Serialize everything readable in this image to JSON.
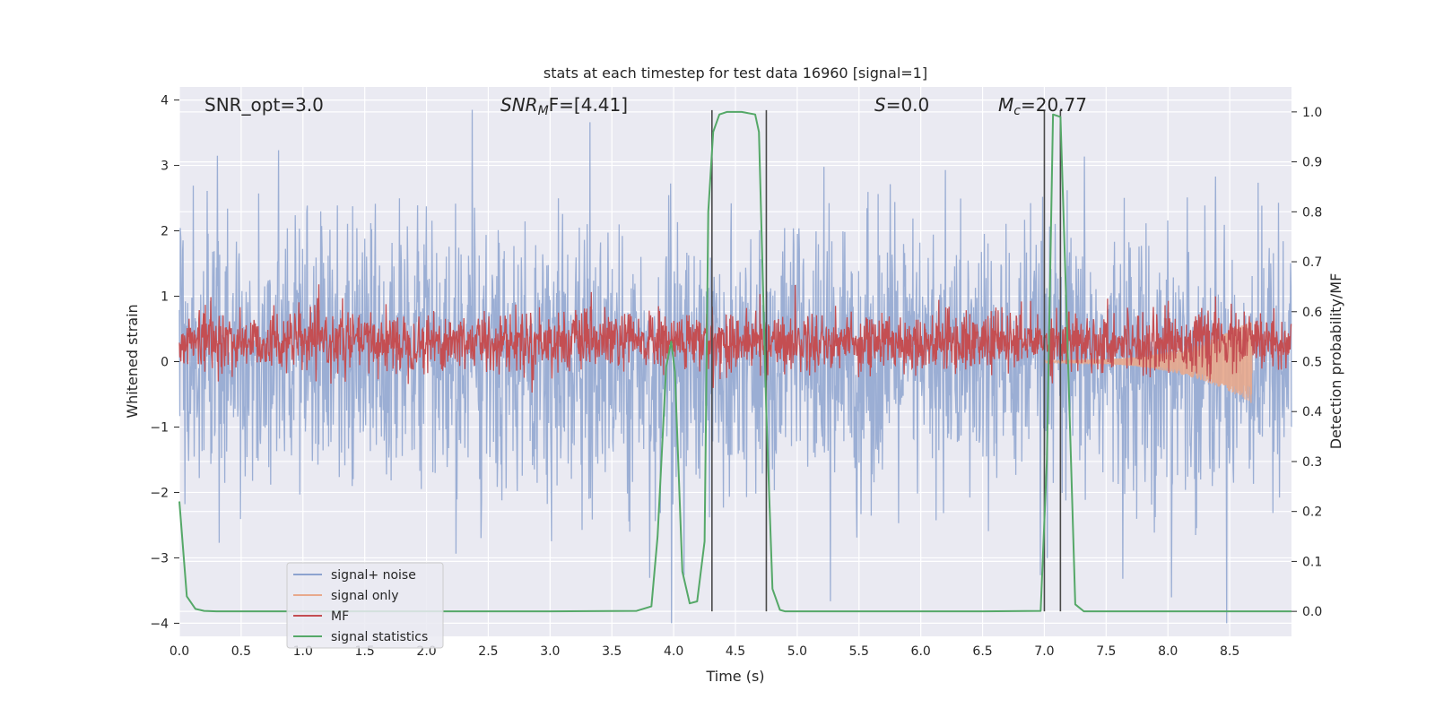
{
  "chart_data": {
    "type": "line",
    "title": "stats at each timestep for test data 16960 [signal=1]",
    "xlabel": "Time (s)",
    "ylabel": "Whitened strain",
    "y2label": "Detection probability/MF",
    "xlim": [
      0.0,
      9.0
    ],
    "ylim": [
      -4.2,
      4.2
    ],
    "y2lim": [
      -0.05,
      1.05
    ],
    "xticks": [
      "0.0",
      "0.5",
      "1.0",
      "1.5",
      "2.0",
      "2.5",
      "3.0",
      "3.5",
      "4.0",
      "4.5",
      "5.0",
      "5.5",
      "6.0",
      "6.5",
      "7.0",
      "7.5",
      "8.0",
      "8.5"
    ],
    "xtick_values": [
      0.0,
      0.5,
      1.0,
      1.5,
      2.0,
      2.5,
      3.0,
      3.5,
      4.0,
      4.5,
      5.0,
      5.5,
      6.0,
      6.5,
      7.0,
      7.5,
      8.0,
      8.5
    ],
    "yticks": [
      "−4",
      "−3",
      "−2",
      "−1",
      "0",
      "1",
      "2",
      "3",
      "4"
    ],
    "ytick_values": [
      -4,
      -3,
      -2,
      -1,
      0,
      1,
      2,
      3,
      4
    ],
    "y2ticks": [
      "0.0",
      "0.1",
      "0.2",
      "0.3",
      "0.4",
      "0.5",
      "0.6",
      "0.7",
      "0.8",
      "0.9",
      "1.0"
    ],
    "y2tick_values": [
      0.0,
      0.1,
      0.2,
      0.3,
      0.4,
      0.5,
      0.6,
      0.7,
      0.8,
      0.9,
      1.0
    ],
    "grid": true,
    "legend_position": "bottom-left",
    "annotations": {
      "snr_opt": "SNR_opt=3.0",
      "snr_mf_main": "SNR",
      "snr_mf_sub": "M",
      "snr_mf_rest": "F=[4.41]",
      "s_var": "S",
      "s_rest": "=0.0",
      "mc_var": "M",
      "mc_sub": "c",
      "mc_rest": "=20.77"
    },
    "vertical_lines": [
      4.31,
      4.75,
      7.0,
      7.13
    ],
    "series": [
      {
        "name": "signal+ noise",
        "color": "#8da3cf",
        "axis": "left",
        "description_values": {
          "amplitude_typical": 1.7,
          "max": 3.85,
          "min": -4.0
        }
      },
      {
        "name": "signal only",
        "color": "#e8a98c",
        "axis": "left",
        "chirp_start": 7.0,
        "chirp_end": 8.68,
        "chirp_max_amplitude": 0.62
      },
      {
        "name": "MF",
        "color": "#c44e52",
        "axis": "right",
        "baseline": 0.54,
        "spread": 0.03
      },
      {
        "name": "signal statistics",
        "color": "#55a868",
        "axis": "right",
        "x": [
          0.0,
          0.06,
          0.13,
          0.2,
          0.3,
          1.0,
          2.0,
          3.0,
          3.7,
          3.82,
          3.87,
          3.94,
          3.98,
          4.01,
          4.07,
          4.13,
          4.19,
          4.25,
          4.28,
          4.32,
          4.37,
          4.43,
          4.55,
          4.66,
          4.69,
          4.75,
          4.8,
          4.86,
          4.9,
          5.5,
          6.0,
          6.5,
          6.97,
          7.02,
          7.07,
          7.13,
          7.18,
          7.25,
          7.32,
          7.5,
          8.0,
          9.0
        ],
        "values": [
          0.22,
          0.03,
          0.005,
          0.001,
          0.0,
          0.0,
          0.0,
          0.0,
          0.001,
          0.01,
          0.15,
          0.49,
          0.54,
          0.48,
          0.08,
          0.016,
          0.02,
          0.14,
          0.8,
          0.96,
          0.995,
          1.0,
          1.0,
          0.995,
          0.96,
          0.4,
          0.045,
          0.003,
          0.0,
          0.0,
          0.0,
          0.0,
          0.001,
          0.3,
          0.995,
          0.99,
          0.6,
          0.014,
          0.0,
          0.0,
          0.0,
          0.0
        ]
      }
    ]
  }
}
